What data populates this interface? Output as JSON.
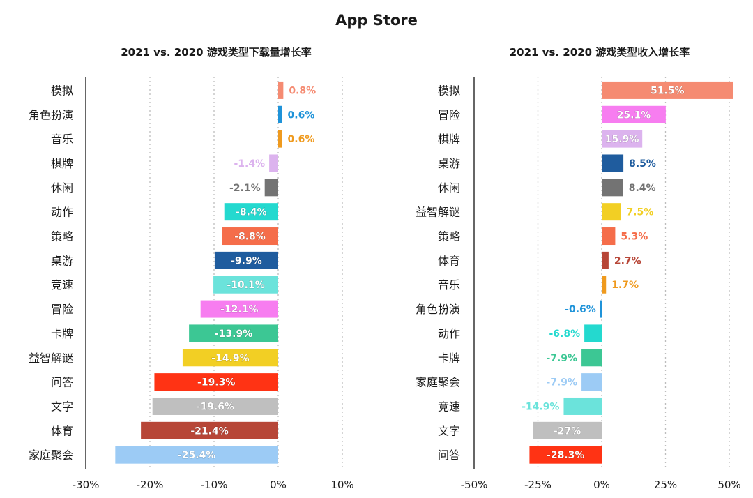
{
  "title": "App Store",
  "chart_data": [
    {
      "type": "bar",
      "orientation": "horizontal",
      "title": "2021 vs. 2020 游戏类型下载量增长率",
      "categories": [
        "模拟",
        "角色扮演",
        "音乐",
        "棋牌",
        "休闲",
        "动作",
        "策略",
        "桌游",
        "竞速",
        "冒险",
        "卡牌",
        "益智解谜",
        "问答",
        "文字",
        "体育",
        "家庭聚会"
      ],
      "values": [
        0.8,
        0.6,
        0.6,
        -1.4,
        -2.1,
        -8.4,
        -8.8,
        -9.9,
        -10.1,
        -12.1,
        -13.9,
        -14.9,
        -19.3,
        -19.6,
        -21.4,
        -25.4
      ],
      "labels": [
        "0.8%",
        "0.6%",
        "0.6%",
        "-1.4%",
        "-2.1%",
        "-8.4%",
        "-8.8%",
        "-9.9%",
        "-10.1%",
        "-12.1%",
        "-13.9%",
        "-14.9%",
        "-19.3%",
        "-19.6%",
        "-21.4%",
        "-25.4%"
      ],
      "colors": [
        "#f58b72",
        "#1f93d9",
        "#ef9a1e",
        "#dcb3ee",
        "#737373",
        "#24d9cf",
        "#f56d4a",
        "#1f5c9e",
        "#6be3db",
        "#f77df0",
        "#3cc794",
        "#f2cf24",
        "#ff3314",
        "#bfbfbf",
        "#b74637",
        "#9ccbf5"
      ],
      "xlim": [
        -30,
        10
      ],
      "xticks": [
        -30,
        -20,
        -10,
        0,
        10
      ],
      "xtick_labels": [
        "-30%",
        "-20%",
        "-10%",
        "0%",
        "10%"
      ],
      "grid": true
    },
    {
      "type": "bar",
      "orientation": "horizontal",
      "title": "2021 vs. 2020 游戏类型收入增长率",
      "categories": [
        "模拟",
        "冒险",
        "棋牌",
        "桌游",
        "休闲",
        "益智解谜",
        "策略",
        "体育",
        "音乐",
        "角色扮演",
        "动作",
        "卡牌",
        "家庭聚会",
        "竞速",
        "文字",
        "问答"
      ],
      "values": [
        51.5,
        25.1,
        15.9,
        8.5,
        8.4,
        7.5,
        5.3,
        2.7,
        1.7,
        -0.6,
        -6.8,
        -7.9,
        -7.9,
        -14.9,
        -27,
        -28.3
      ],
      "labels": [
        "51.5%",
        "25.1%",
        "15.9%",
        "8.5%",
        "8.4%",
        "7.5%",
        "5.3%",
        "2.7%",
        "1.7%",
        "-0.6%",
        "-6.8%",
        "-7.9%",
        "-7.9%",
        "-14.9%",
        "-27%",
        "-28.3%"
      ],
      "colors": [
        "#f58b72",
        "#f77df0",
        "#dcb3ee",
        "#1f5c9e",
        "#737373",
        "#f2cf24",
        "#f56d4a",
        "#b74637",
        "#ef9a1e",
        "#1f93d9",
        "#24d9cf",
        "#3cc794",
        "#9ccbf5",
        "#6be3db",
        "#bfbfbf",
        "#ff3314"
      ],
      "xlim": [
        -50,
        50
      ],
      "xticks": [
        -50,
        -25,
        0,
        25,
        50
      ],
      "xtick_labels": [
        "-50%",
        "-25%",
        "0%",
        "25%",
        "50%"
      ],
      "grid": true
    }
  ]
}
